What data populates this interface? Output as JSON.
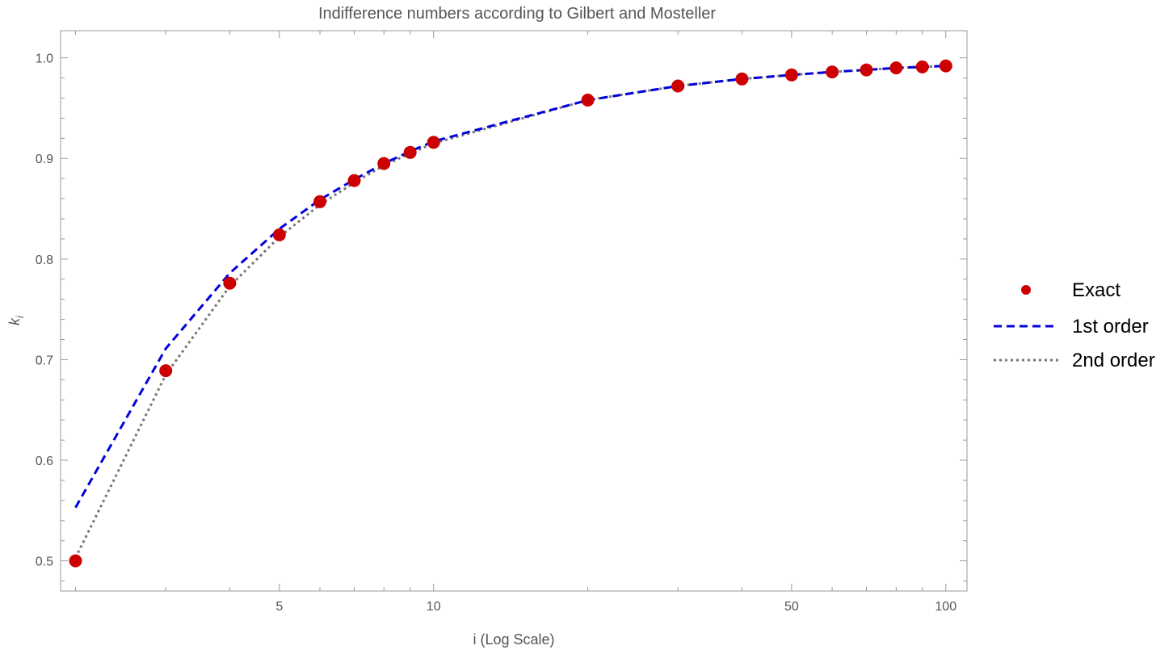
{
  "chart_data": {
    "type": "scatter",
    "title": "Indifference numbers according to Gilbert and Mosteller",
    "xlabel": "i (Log Scale)",
    "ylabel": "k",
    "ylabel_subscript": "i",
    "x_scale": "log",
    "xlim": [
      1.87,
      110
    ],
    "ylim": [
      0.47,
      1.027
    ],
    "x_ticks": [
      {
        "value": 5,
        "label": "5"
      },
      {
        "value": 10,
        "label": "10"
      },
      {
        "value": 50,
        "label": "50"
      },
      {
        "value": 100,
        "label": "100"
      }
    ],
    "y_ticks": [
      {
        "value": 0.5,
        "label": "0.5"
      },
      {
        "value": 0.6,
        "label": "0.6"
      },
      {
        "value": 0.7,
        "label": "0.7"
      },
      {
        "value": 0.8,
        "label": "0.8"
      },
      {
        "value": 0.9,
        "label": "0.9"
      },
      {
        "value": 1.0,
        "label": "1.0"
      }
    ],
    "grid": false,
    "legend_position": "right",
    "colors": {
      "exact": "#cc0000",
      "first": "#0000dd",
      "second": "#777777",
      "frame": "#999999"
    },
    "series": [
      {
        "name": "Exact",
        "style": "points",
        "x": [
          2,
          3,
          4,
          5,
          6,
          7,
          8,
          9,
          10,
          20,
          30,
          40,
          50,
          60,
          70,
          80,
          90,
          100
        ],
        "y": [
          0.5,
          0.689,
          0.776,
          0.824,
          0.857,
          0.878,
          0.895,
          0.906,
          0.916,
          0.958,
          0.972,
          0.979,
          0.983,
          0.986,
          0.988,
          0.99,
          0.991,
          0.992
        ]
      },
      {
        "name": "1st order",
        "style": "dashed",
        "x": [
          2,
          3,
          4,
          5,
          6,
          7,
          8,
          9,
          10,
          20,
          30,
          40,
          50,
          60,
          70,
          80,
          90,
          100
        ],
        "y": [
          0.553,
          0.711,
          0.786,
          0.83,
          0.859,
          0.879,
          0.895,
          0.907,
          0.917,
          0.958,
          0.972,
          0.979,
          0.983,
          0.986,
          0.988,
          0.99,
          0.991,
          0.992
        ]
      },
      {
        "name": "2nd order",
        "style": "dotted",
        "x": [
          2,
          3,
          4,
          5,
          6,
          7,
          8,
          9,
          10,
          20,
          30,
          40,
          50,
          60,
          70,
          80,
          90,
          100
        ],
        "y": [
          0.503,
          0.685,
          0.773,
          0.822,
          0.854,
          0.876,
          0.893,
          0.905,
          0.915,
          0.958,
          0.972,
          0.979,
          0.983,
          0.986,
          0.988,
          0.99,
          0.991,
          0.992
        ]
      }
    ]
  }
}
